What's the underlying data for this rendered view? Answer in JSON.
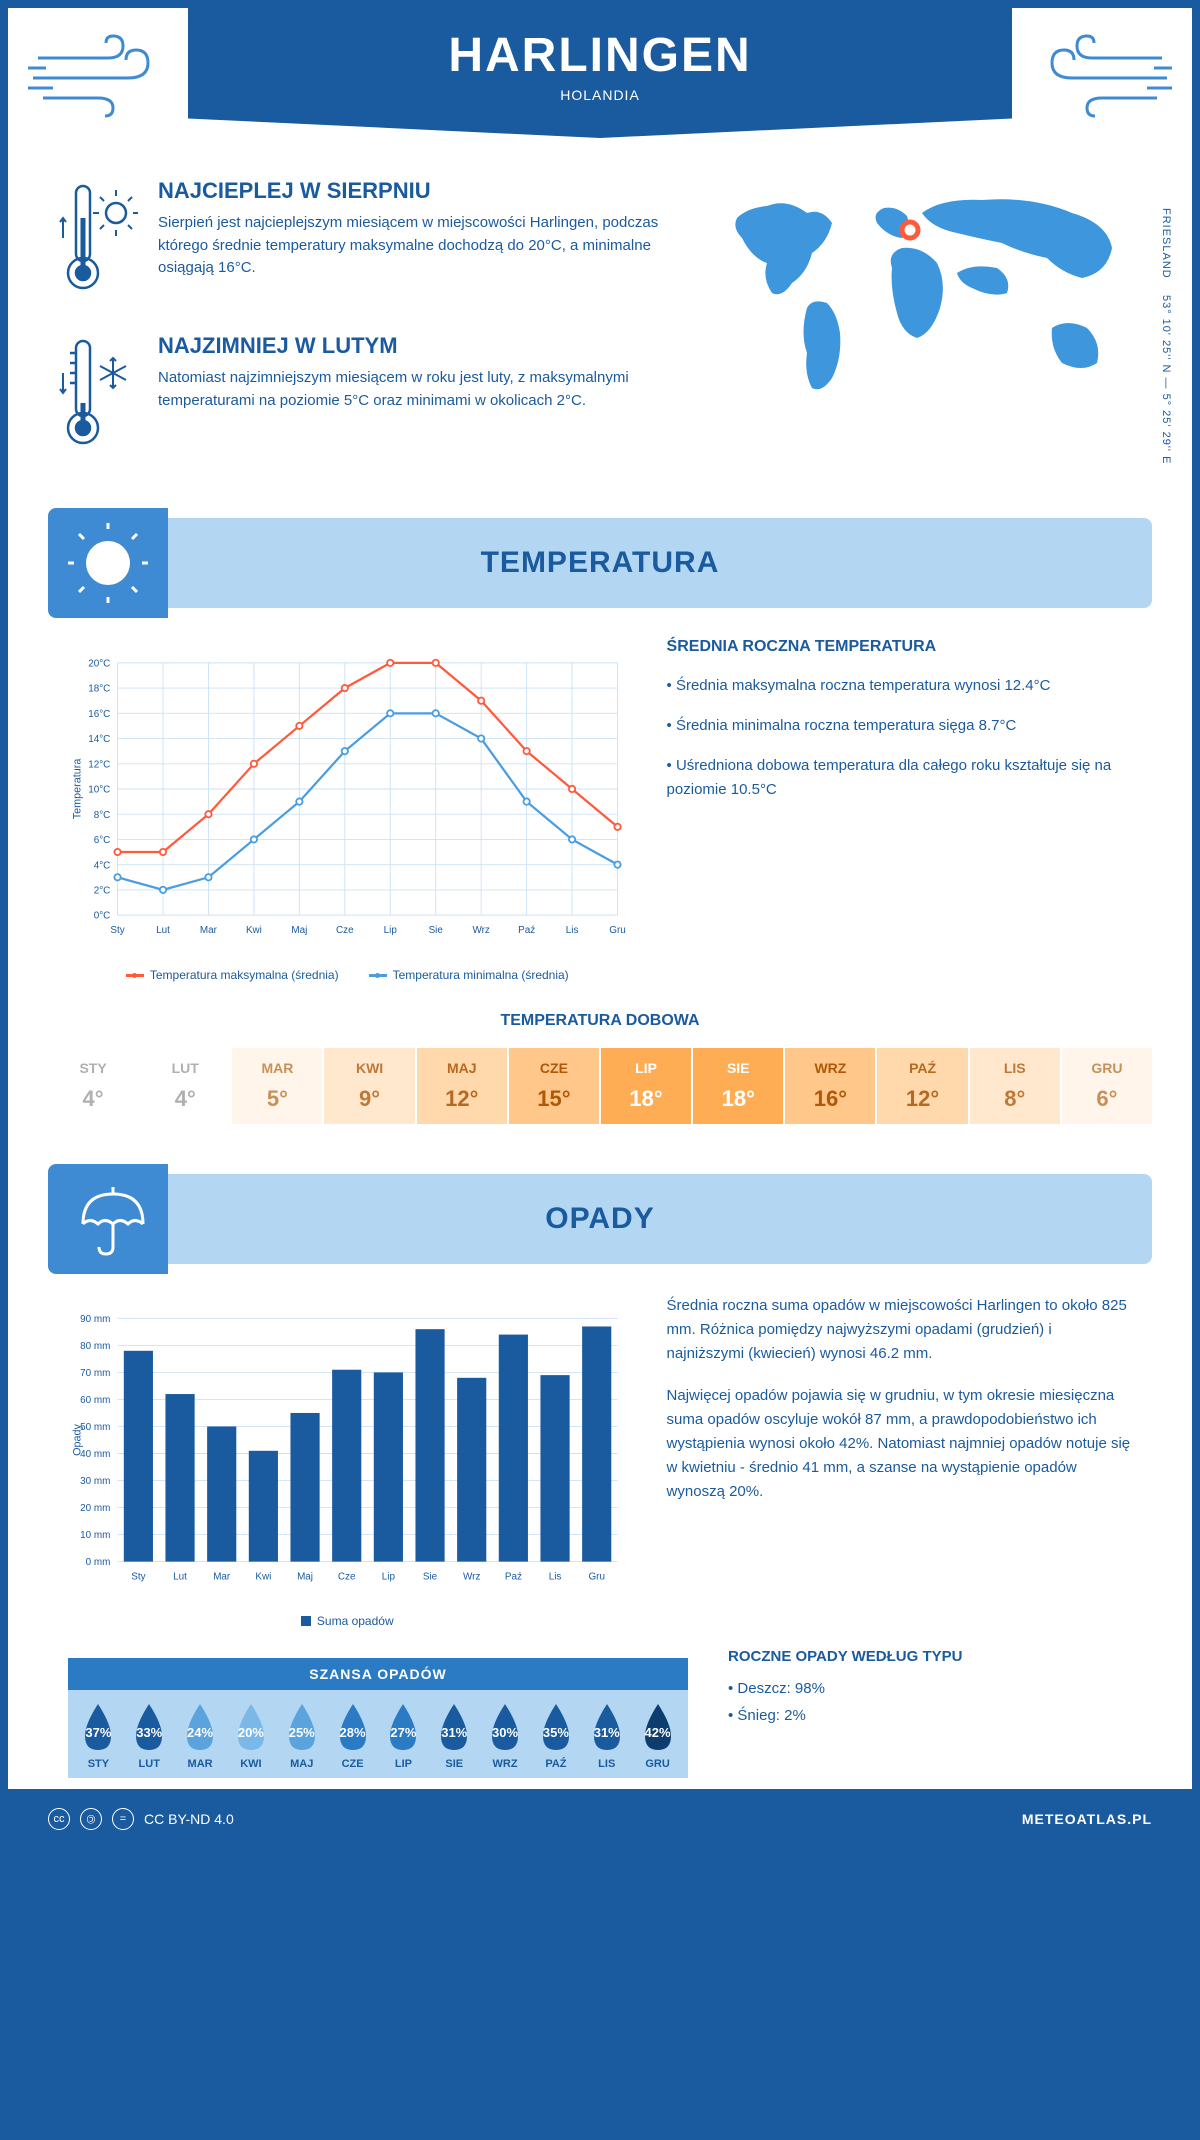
{
  "header": {
    "city": "HARLINGEN",
    "country": "HOLANDIA"
  },
  "coords": {
    "text": "53° 10' 25'' N — 5° 25' 29'' E",
    "region": "FRIESLAND"
  },
  "intro": {
    "hot": {
      "title": "NAJCIEPLEJ W SIERPNIU",
      "text": "Sierpień jest najcieplejszym miesiącem w miejscowości Harlingen, podczas którego średnie temperatury maksymalne dochodzą do 20°C, a minimalne osiągają 16°C."
    },
    "cold": {
      "title": "NAJZIMNIEJ W LUTYM",
      "text": "Natomiast najzimniejszym miesiącem w roku jest luty, z maksymalnymi temperaturami na poziomie 5°C oraz minimami w okolicach 2°C."
    }
  },
  "sections": {
    "temp": "TEMPERATURA",
    "precip": "OPADY"
  },
  "temp_chart": {
    "type": "line",
    "months": [
      "Sty",
      "Lut",
      "Mar",
      "Kwi",
      "Maj",
      "Cze",
      "Lip",
      "Sie",
      "Wrz",
      "Paź",
      "Lis",
      "Gru"
    ],
    "max_series": [
      5,
      5,
      8,
      12,
      15,
      18,
      20,
      20,
      17,
      13,
      10,
      7
    ],
    "min_series": [
      3,
      2,
      3,
      6,
      9,
      13,
      16,
      16,
      14,
      9,
      6,
      4
    ],
    "max_color": "#ff5a3c",
    "min_color": "#4a9de0",
    "ylim": [
      0,
      20
    ],
    "ytick_step": 2,
    "ylabel": "Temperatura",
    "grid_color": "#cbe2f5",
    "bg": "#ffffff",
    "legend_max": "Temperatura maksymalna (średnia)",
    "legend_min": "Temperatura minimalna (średnia)"
  },
  "temp_info": {
    "heading": "ŚREDNIA ROCZNA TEMPERATURA",
    "b1": "• Średnia maksymalna roczna temperatura wynosi 12.4°C",
    "b2": "• Średnia minimalna roczna temperatura sięga 8.7°C",
    "b3": "• Uśredniona dobowa temperatura dla całego roku kształtuje się na poziomie 10.5°C"
  },
  "dobowa": {
    "title": "TEMPERATURA DOBOWA",
    "months": [
      "STY",
      "LUT",
      "MAR",
      "KWI",
      "MAJ",
      "CZE",
      "LIP",
      "SIE",
      "WRZ",
      "PAŹ",
      "LIS",
      "GRU"
    ],
    "values": [
      "4°",
      "4°",
      "5°",
      "9°",
      "12°",
      "15°",
      "18°",
      "18°",
      "16°",
      "12°",
      "8°",
      "6°"
    ],
    "bg_colors": [
      "#ffffff",
      "#ffffff",
      "#fff5ea",
      "#ffe8ce",
      "#ffd9ac",
      "#ffc88a",
      "#ffad55",
      "#ffad55",
      "#ffc88a",
      "#ffd9ac",
      "#ffe8ce",
      "#fff5ea"
    ],
    "text_colors": [
      "#b0b0b0",
      "#b0b0b0",
      "#c89058",
      "#c07838",
      "#b86820",
      "#b05808",
      "#ffffff",
      "#ffffff",
      "#b05808",
      "#b86820",
      "#c07838",
      "#c89058"
    ]
  },
  "precip_chart": {
    "type": "bar",
    "months": [
      "Sty",
      "Lut",
      "Mar",
      "Kwi",
      "Maj",
      "Cze",
      "Lip",
      "Sie",
      "Wrz",
      "Paź",
      "Lis",
      "Gru"
    ],
    "values": [
      78,
      62,
      50,
      41,
      55,
      71,
      70,
      86,
      68,
      84,
      69,
      87
    ],
    "bar_color": "#1a5a9e",
    "ylim": [
      0,
      90
    ],
    "ytick_step": 10,
    "ylabel": "Opady",
    "legend": "Suma opadów",
    "grid_color": "#cbe2f5"
  },
  "precip_info": {
    "p1": "Średnia roczna suma opadów w miejscowości Harlingen to około 825 mm. Różnica pomiędzy najwyższymi opadami (grudzień) i najniższymi (kwiecień) wynosi 46.2 mm.",
    "p2": "Najwięcej opadów pojawia się w grudniu, w tym okresie miesięczna suma opadów oscyluje wokół 87 mm, a prawdopodobieństwo ich wystąpienia wynosi około 42%. Natomiast najmniej opadów notuje się w kwietniu - średnio 41 mm, a szanse na wystąpienie opadów wynoszą 20%."
  },
  "chance": {
    "title": "SZANSA OPADÓW",
    "months": [
      "STY",
      "LUT",
      "MAR",
      "KWI",
      "MAJ",
      "CZE",
      "LIP",
      "SIE",
      "WRZ",
      "PAŹ",
      "LIS",
      "GRU"
    ],
    "values": [
      "37%",
      "33%",
      "24%",
      "20%",
      "25%",
      "28%",
      "27%",
      "31%",
      "30%",
      "35%",
      "31%",
      "42%"
    ],
    "colors": [
      "#1a5a9e",
      "#1a5a9e",
      "#5ba3dd",
      "#7bb8e8",
      "#5ba3dd",
      "#2a7ac4",
      "#2a7ac4",
      "#1a5a9e",
      "#1a5a9e",
      "#1a5a9e",
      "#1a5a9e",
      "#0d3d6e"
    ]
  },
  "precip_type": {
    "heading": "ROCZNE OPADY WEDŁUG TYPU",
    "rain": "• Deszcz: 98%",
    "snow": "• Śnieg: 2%"
  },
  "footer": {
    "license": "CC BY-ND 4.0",
    "site": "METEOATLAS.PL"
  }
}
